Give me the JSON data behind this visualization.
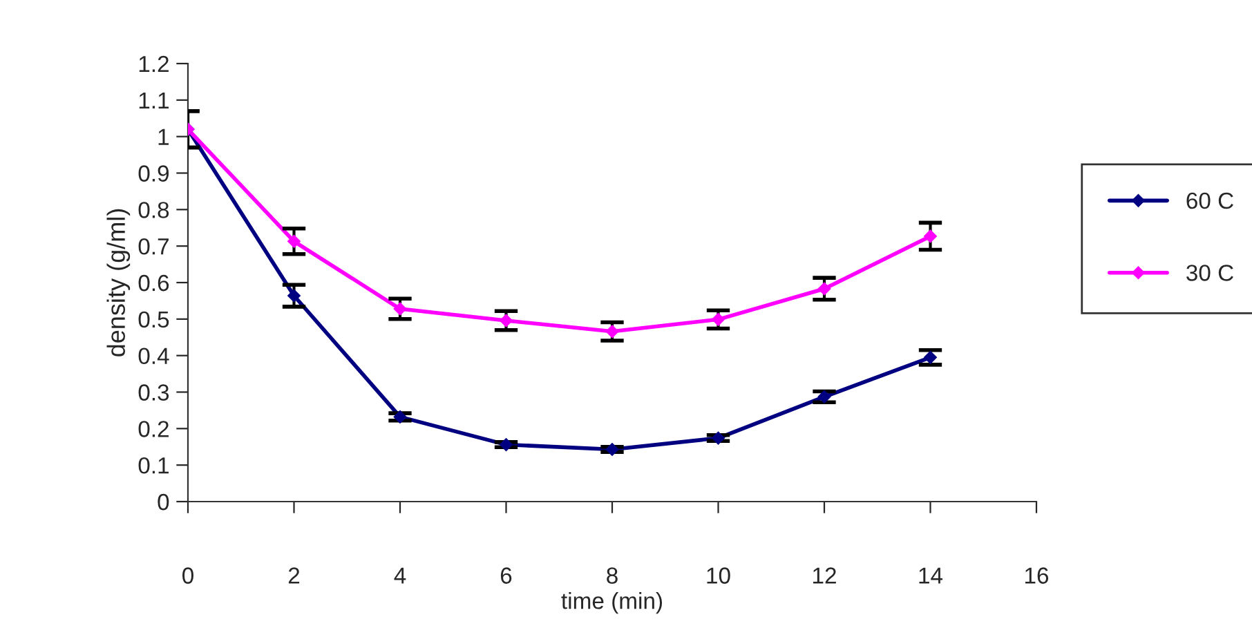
{
  "chart_data": {
    "type": "line",
    "xlabel": "time (min)",
    "ylabel": "density (g/ml)",
    "x": [
      0,
      2,
      4,
      6,
      8,
      10,
      12,
      14
    ],
    "series": [
      {
        "name": "60 C",
        "color": "#000080",
        "values": [
          1.02,
          0.564,
          0.232,
          0.156,
          0.143,
          0.174,
          0.287,
          0.395
        ],
        "errors": [
          0.05,
          0.03,
          0.01,
          0.007,
          0.007,
          0.008,
          0.015,
          0.02
        ]
      },
      {
        "name": "30 C",
        "color": "#ff00ff",
        "values": [
          1.02,
          0.713,
          0.528,
          0.496,
          0.466,
          0.499,
          0.583,
          0.727
        ],
        "errors": [
          0.05,
          0.035,
          0.028,
          0.026,
          0.025,
          0.025,
          0.03,
          0.037
        ]
      }
    ],
    "xlim": [
      0,
      16
    ],
    "xticks": [
      0,
      2,
      4,
      6,
      8,
      10,
      12,
      14,
      16
    ],
    "ylim": [
      0,
      1.2
    ],
    "yticks": [
      0,
      0.1,
      0.2,
      0.3,
      0.4,
      0.5,
      0.6,
      0.7,
      0.8,
      0.9,
      1,
      1.1,
      1.2
    ],
    "grid": false,
    "legend": "right",
    "marker": "diamond",
    "line_style": "solid"
  }
}
